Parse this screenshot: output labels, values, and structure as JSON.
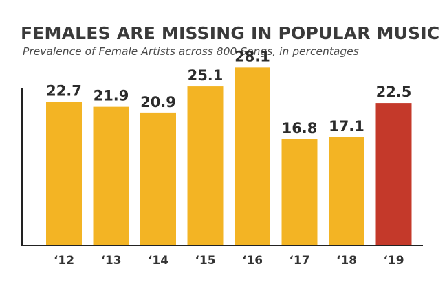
{
  "chart_data": {
    "type": "bar",
    "title": "FEMALES ARE MISSING IN POPULAR MUSIC",
    "subtitle": "Prevalence of Female Artists across 800 Songs, in percentages",
    "categories": [
      "‘12",
      "‘13",
      "‘14",
      "‘15",
      "‘16",
      "‘17",
      "‘18",
      "‘19"
    ],
    "values": [
      22.7,
      21.9,
      20.9,
      25.1,
      28.1,
      16.8,
      17.1,
      22.5
    ],
    "value_labels": [
      "22.7",
      "21.9",
      "20.9",
      "25.1",
      "28.1",
      "16.8",
      "17.1",
      "22.5"
    ],
    "ylim": [
      0,
      34
    ],
    "xlabel": "",
    "ylabel": "",
    "grid": false,
    "colors": {
      "default_bar": "#F3B424",
      "highlight_bar": "#C4392A",
      "axis": "#222222"
    },
    "highlight_index": 7
  }
}
